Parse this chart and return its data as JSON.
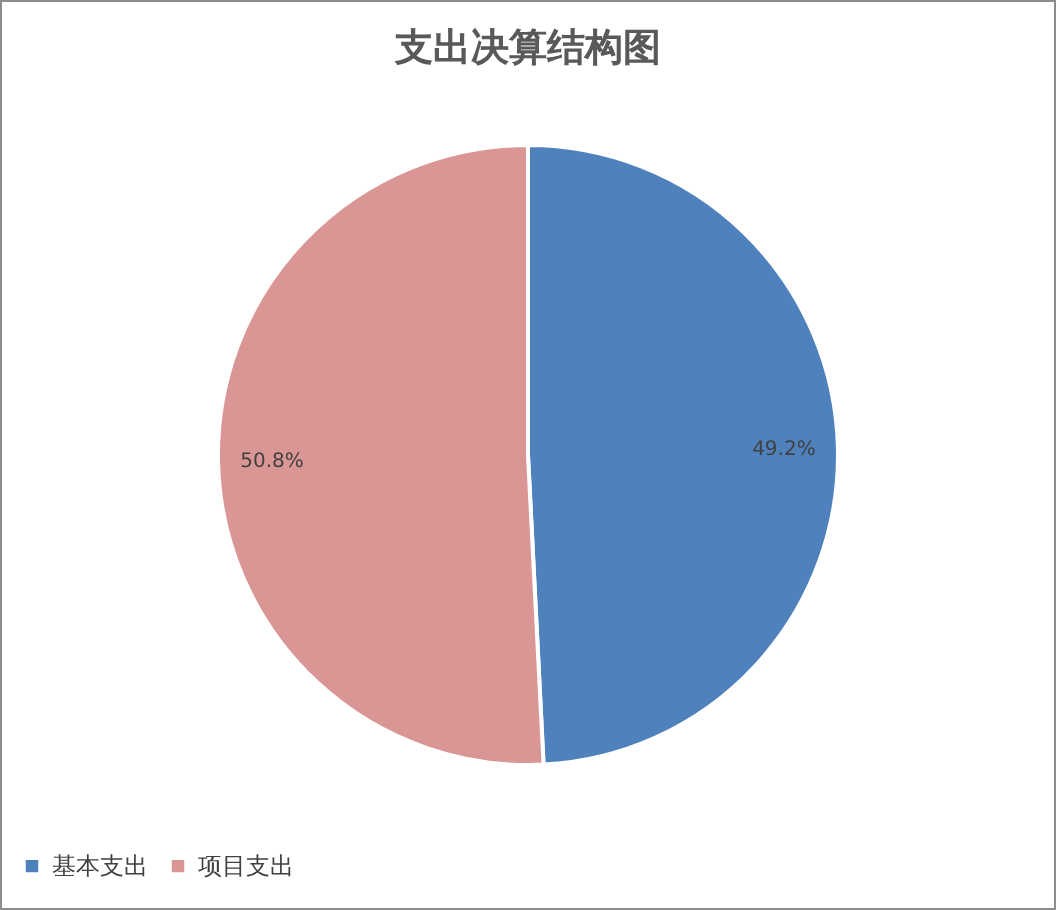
{
  "chart_data": {
    "type": "pie",
    "title": "支出决算结构图",
    "categories": [
      "基本支出",
      "项目支出"
    ],
    "values": [
      49.2,
      50.8
    ],
    "colors": [
      "#4f81bd",
      "#d99694"
    ],
    "value_labels": [
      "49.2%",
      "50.8%"
    ],
    "legend": "bottom"
  }
}
